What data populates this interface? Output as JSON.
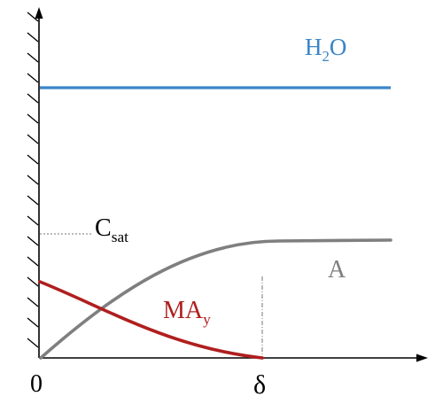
{
  "labels": {
    "water": {
      "main": "H",
      "sub": "2",
      "tail": "O"
    },
    "csat": {
      "main": "C",
      "sub": "sat"
    },
    "a": "A",
    "may": {
      "main": "MA",
      "sub": "y"
    },
    "origin": "0",
    "delta": "δ"
  },
  "colors": {
    "water_line": "#3a85c8",
    "a_curve": "#7f7f7f",
    "may_curve": "#b01e1e",
    "axis": "#000000",
    "guide": "#777777"
  }
}
